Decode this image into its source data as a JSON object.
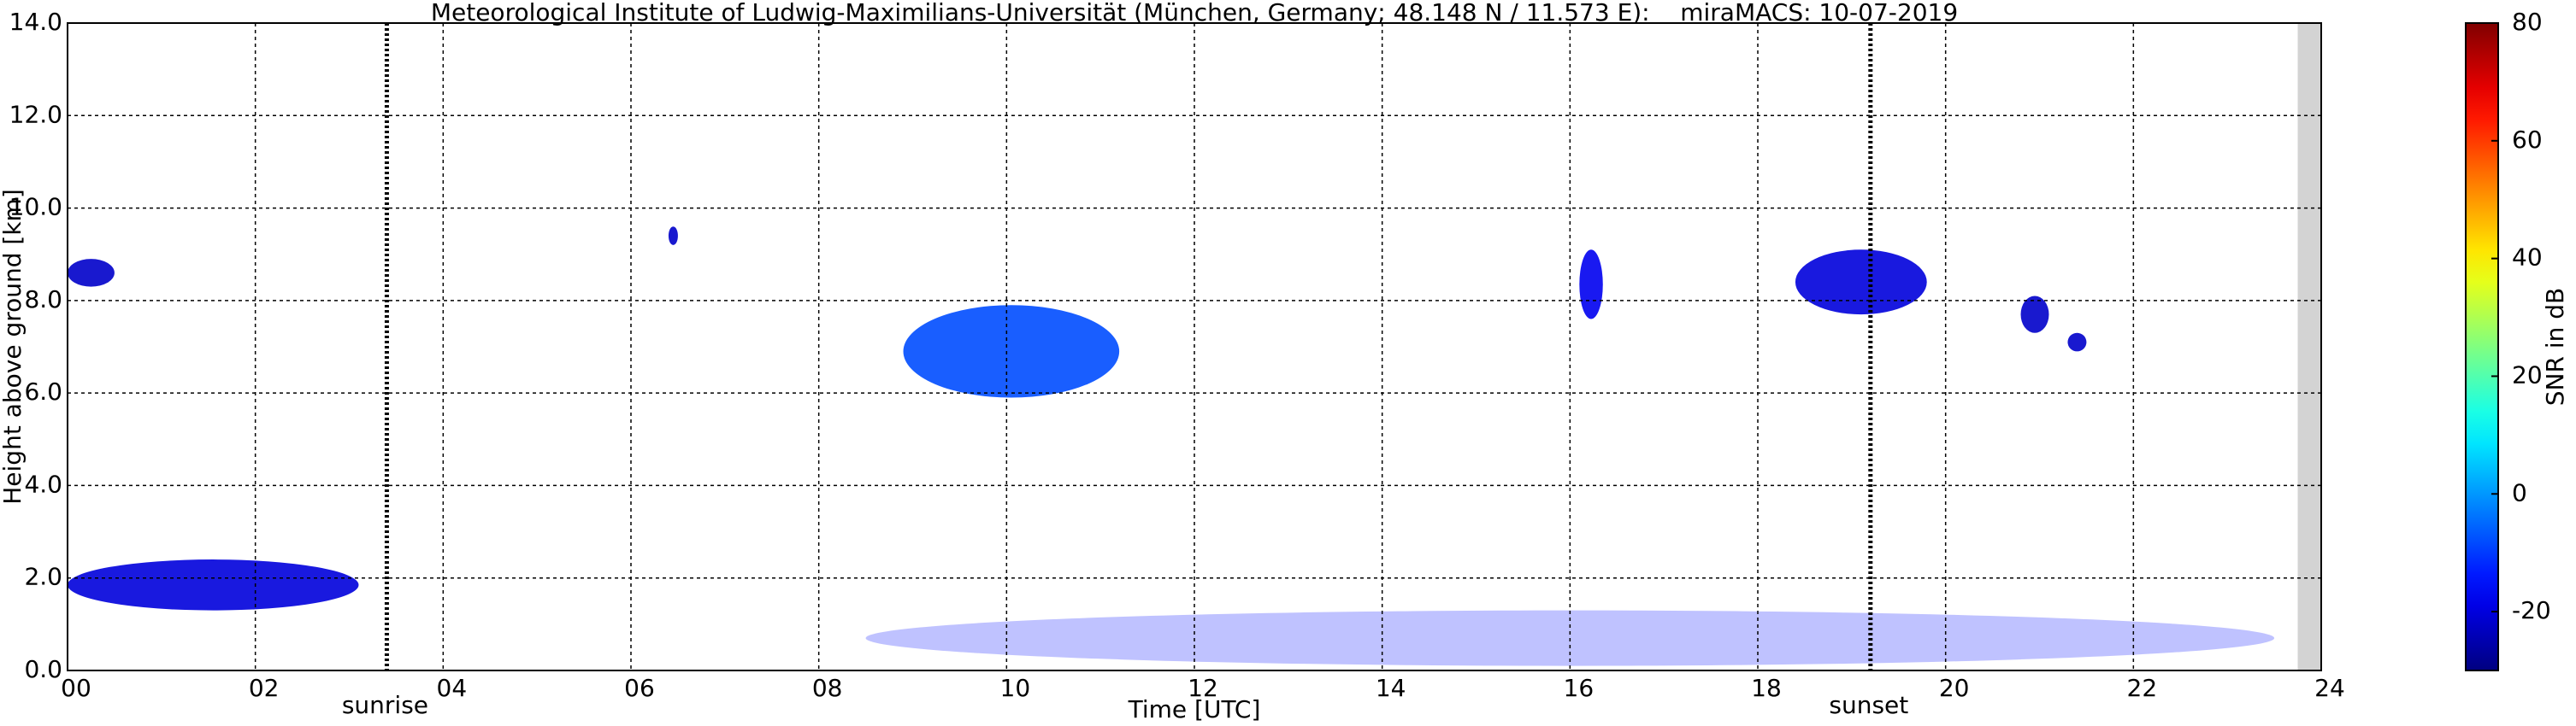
{
  "chart_data": {
    "type": "time-height",
    "title": "Meteorological Institute of Ludwig-Maximilians-Universität (München, Germany; 48.148 N / 11.573 E):    miraMACS: 10-07-2019",
    "x_label": "Time [UTC]",
    "y_label": "Height above ground [km]",
    "colorbar_label": "SNR in dB",
    "colormap": "jet",
    "grid": true,
    "xlim": [
      0,
      24
    ],
    "xticks": [
      {
        "value": 0,
        "label": "00"
      },
      {
        "value": 2,
        "label": "02"
      },
      {
        "value": 4,
        "label": "04"
      },
      {
        "value": 6,
        "label": "06"
      },
      {
        "value": 8,
        "label": "08"
      },
      {
        "value": 10,
        "label": "10"
      },
      {
        "value": 12,
        "label": "12"
      },
      {
        "value": 14,
        "label": "14"
      },
      {
        "value": 16,
        "label": "16"
      },
      {
        "value": 18,
        "label": "18"
      },
      {
        "value": 20,
        "label": "20"
      },
      {
        "value": 22,
        "label": "22"
      },
      {
        "value": 24,
        "label": "24"
      }
    ],
    "ylim": [
      0,
      14
    ],
    "yticks": [
      {
        "value": 0,
        "label": "0.0"
      },
      {
        "value": 2,
        "label": "2.0"
      },
      {
        "value": 4,
        "label": "4.0"
      },
      {
        "value": 6,
        "label": "6.0"
      },
      {
        "value": 8,
        "label": "8.0"
      },
      {
        "value": 10,
        "label": "10.0"
      },
      {
        "value": 12,
        "label": "12.0"
      },
      {
        "value": 14,
        "label": "14.0"
      }
    ],
    "clim": [
      -30,
      80
    ],
    "cticks": [
      -20,
      0,
      20,
      40,
      60,
      80
    ],
    "no_data_from": 23.75,
    "markers": [
      {
        "name": "sunrise",
        "x": 3.4
      },
      {
        "name": "sunset",
        "x": 19.2
      }
    ],
    "echoes": [
      {
        "start": 0.0,
        "end": 0.5,
        "bottom": 8.3,
        "top": 8.9,
        "snr": -22
      },
      {
        "start": 0.0,
        "end": 3.1,
        "bottom": 1.3,
        "top": 2.4,
        "snr": -20
      },
      {
        "start": 6.4,
        "end": 6.5,
        "bottom": 9.2,
        "top": 9.6,
        "snr": -22
      },
      {
        "start": 8.9,
        "end": 11.2,
        "bottom": 5.9,
        "top": 7.9,
        "snr": -8
      },
      {
        "start": 16.1,
        "end": 16.35,
        "bottom": 7.6,
        "top": 9.1,
        "snr": -18
      },
      {
        "start": 18.4,
        "end": 19.8,
        "bottom": 7.7,
        "top": 9.1,
        "snr": -20
      },
      {
        "start": 20.8,
        "end": 21.1,
        "bottom": 7.3,
        "top": 8.1,
        "snr": -22
      },
      {
        "start": 21.3,
        "end": 21.5,
        "bottom": 6.9,
        "top": 7.3,
        "snr": -22
      },
      {
        "start": 8.5,
        "end": 23.5,
        "bottom": 0.1,
        "top": 1.3,
        "snr": -15
      }
    ]
  }
}
